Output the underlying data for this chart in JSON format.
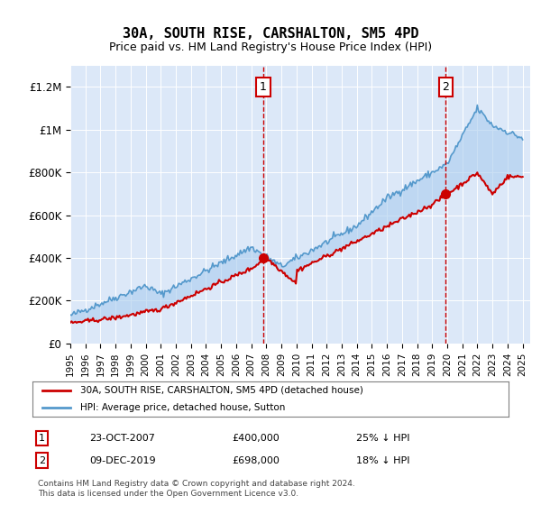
{
  "title": "30A, SOUTH RISE, CARSHALTON, SM5 4PD",
  "subtitle": "Price paid vs. HM Land Registry's House Price Index (HPI)",
  "legend_line1": "30A, SOUTH RISE, CARSHALTON, SM5 4PD (detached house)",
  "legend_line2": "HPI: Average price, detached house, Sutton",
  "annotation1_label": "1",
  "annotation1_date": "23-OCT-2007",
  "annotation1_price": "£400,000",
  "annotation1_pct": "25% ↓ HPI",
  "annotation2_label": "2",
  "annotation2_date": "09-DEC-2019",
  "annotation2_price": "£698,000",
  "annotation2_pct": "18% ↓ HPI",
  "footer": "Contains HM Land Registry data © Crown copyright and database right 2024.\nThis data is licensed under the Open Government Licence v3.0.",
  "background_color": "#f0f4ff",
  "plot_bg_color": "#dce8f8",
  "line_color_red": "#cc0000",
  "line_color_blue": "#5599cc",
  "shade_color": "#aaccee",
  "vline_color": "#cc0000",
  "ylim": [
    0,
    1300000
  ],
  "yticks": [
    0,
    200000,
    400000,
    600000,
    800000,
    1000000,
    1200000
  ],
  "ytick_labels": [
    "£0",
    "£200K",
    "£400K",
    "£600K",
    "£800K",
    "£1M",
    "£1.2M"
  ],
  "x_start_year": 1995,
  "x_end_year": 2025,
  "marker1_year": 2007.8,
  "marker2_year": 2019.9
}
